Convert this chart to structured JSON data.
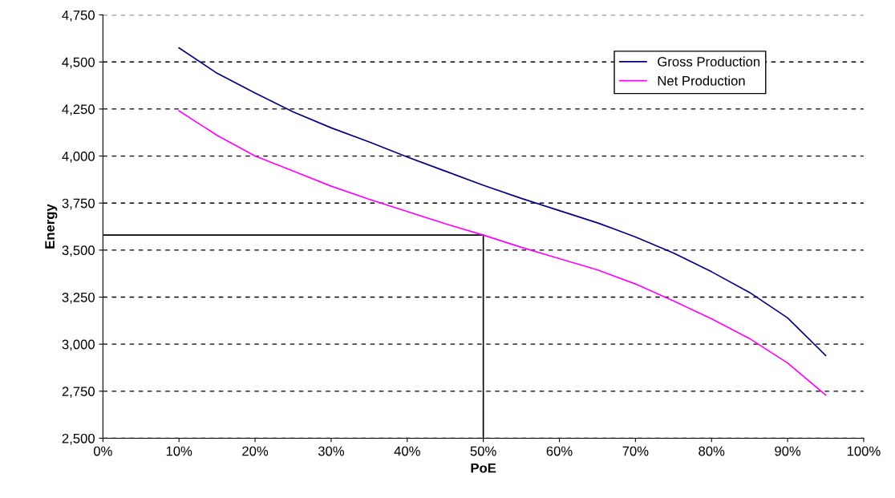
{
  "chart_data": {
    "type": "line",
    "xlabel": "PoE",
    "ylabel": "Energy",
    "xlim": [
      0,
      100
    ],
    "xticks": [
      {
        "value": 0,
        "label": "0%"
      },
      {
        "value": 10,
        "label": "10%"
      },
      {
        "value": 20,
        "label": "20%"
      },
      {
        "value": 30,
        "label": "30%"
      },
      {
        "value": 40,
        "label": "40%"
      },
      {
        "value": 50,
        "label": "50%"
      },
      {
        "value": 60,
        "label": "60%"
      },
      {
        "value": 70,
        "label": "70%"
      },
      {
        "value": 80,
        "label": "80%"
      },
      {
        "value": 90,
        "label": "90%"
      },
      {
        "value": 100,
        "label": "100%"
      }
    ],
    "ylim": [
      2500,
      4750
    ],
    "yticks": [
      {
        "value": 2500,
        "label": "2,500"
      },
      {
        "value": 2750,
        "label": "2,750"
      },
      {
        "value": 3000,
        "label": "3,000"
      },
      {
        "value": 3250,
        "label": "3,250"
      },
      {
        "value": 3500,
        "label": "3,500"
      },
      {
        "value": 3750,
        "label": "3,750"
      },
      {
        "value": 4000,
        "label": "4,000"
      },
      {
        "value": 4250,
        "label": "4,250"
      },
      {
        "value": 4500,
        "label": "4,500"
      },
      {
        "value": 4750,
        "label": "4,750"
      }
    ],
    "x": [
      10,
      15,
      20,
      25,
      30,
      35,
      40,
      45,
      50,
      55,
      60,
      65,
      70,
      75,
      80,
      85,
      90,
      95
    ],
    "series": [
      {
        "name": "Gross Production",
        "color": "#000080",
        "values": [
          4575,
          4440,
          4335,
          4235,
          4150,
          4075,
          3995,
          3920,
          3845,
          3775,
          3710,
          3645,
          3570,
          3485,
          3385,
          3275,
          3140,
          2940
        ]
      },
      {
        "name": "Net Production",
        "color": "#ff00ff",
        "values": [
          4240,
          4110,
          4000,
          3920,
          3840,
          3770,
          3705,
          3640,
          3580,
          3515,
          3455,
          3395,
          3320,
          3230,
          3135,
          3030,
          2900,
          2730
        ]
      }
    ],
    "ref_lines": [
      {
        "axis": "x",
        "value": 50,
        "color": "#000000",
        "line_style": "solid"
      },
      {
        "axis": "y",
        "value": 3580,
        "color": "#000000",
        "line_style": "solid"
      }
    ],
    "grid": "y",
    "legend": "top right",
    "line_style": "solid",
    "marker": "none"
  }
}
